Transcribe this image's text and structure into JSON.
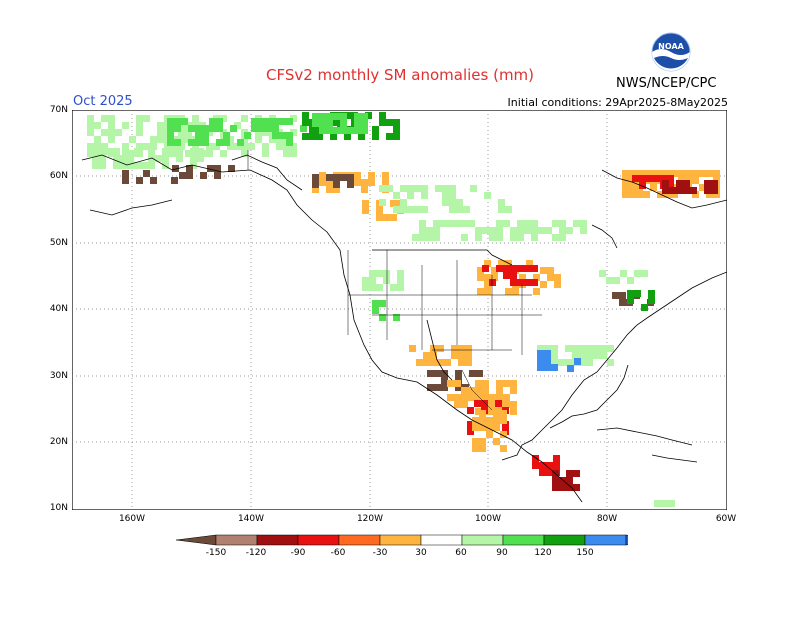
{
  "title": "CFSv2 monthly SM anomalies (mm)",
  "month": "Oct 2025",
  "initial_conditions": "Initial conditions: 29Apr2025-8May2025",
  "organization": "NWS/NCEP/CPC",
  "logo_text": "NOAA",
  "logo_icon": "noaa-logo",
  "lat_labels": [
    "70N",
    "60N",
    "50N",
    "40N",
    "30N",
    "20N",
    "10N"
  ],
  "lon_labels": [
    "160W",
    "140W",
    "120W",
    "100W",
    "80W",
    "60W"
  ],
  "colorbar": {
    "labels": [
      "-150",
      "-120",
      "-90",
      "-60",
      "-30",
      "30",
      "60",
      "90",
      "120",
      "150"
    ],
    "colors": [
      "#6b4a3a",
      "#b08070",
      "#a01010",
      "#e81010",
      "#ff6a20",
      "#ffb440",
      "#ffffff",
      "#b4f5a8",
      "#50e050",
      "#10a010",
      "#3c8cf0",
      "#2060e0"
    ]
  },
  "map_colors": {
    "dry_vdark": "#6b4a3a",
    "dry_dark": "#a01010",
    "dry_red": "#e81010",
    "dry_orange": "#ff6a20",
    "dry_light": "#ffb440",
    "wet_light": "#b4f5a8",
    "wet_med": "#50e050",
    "wet_dark": "#10a010",
    "wet_blue": "#3c8cf0"
  }
}
